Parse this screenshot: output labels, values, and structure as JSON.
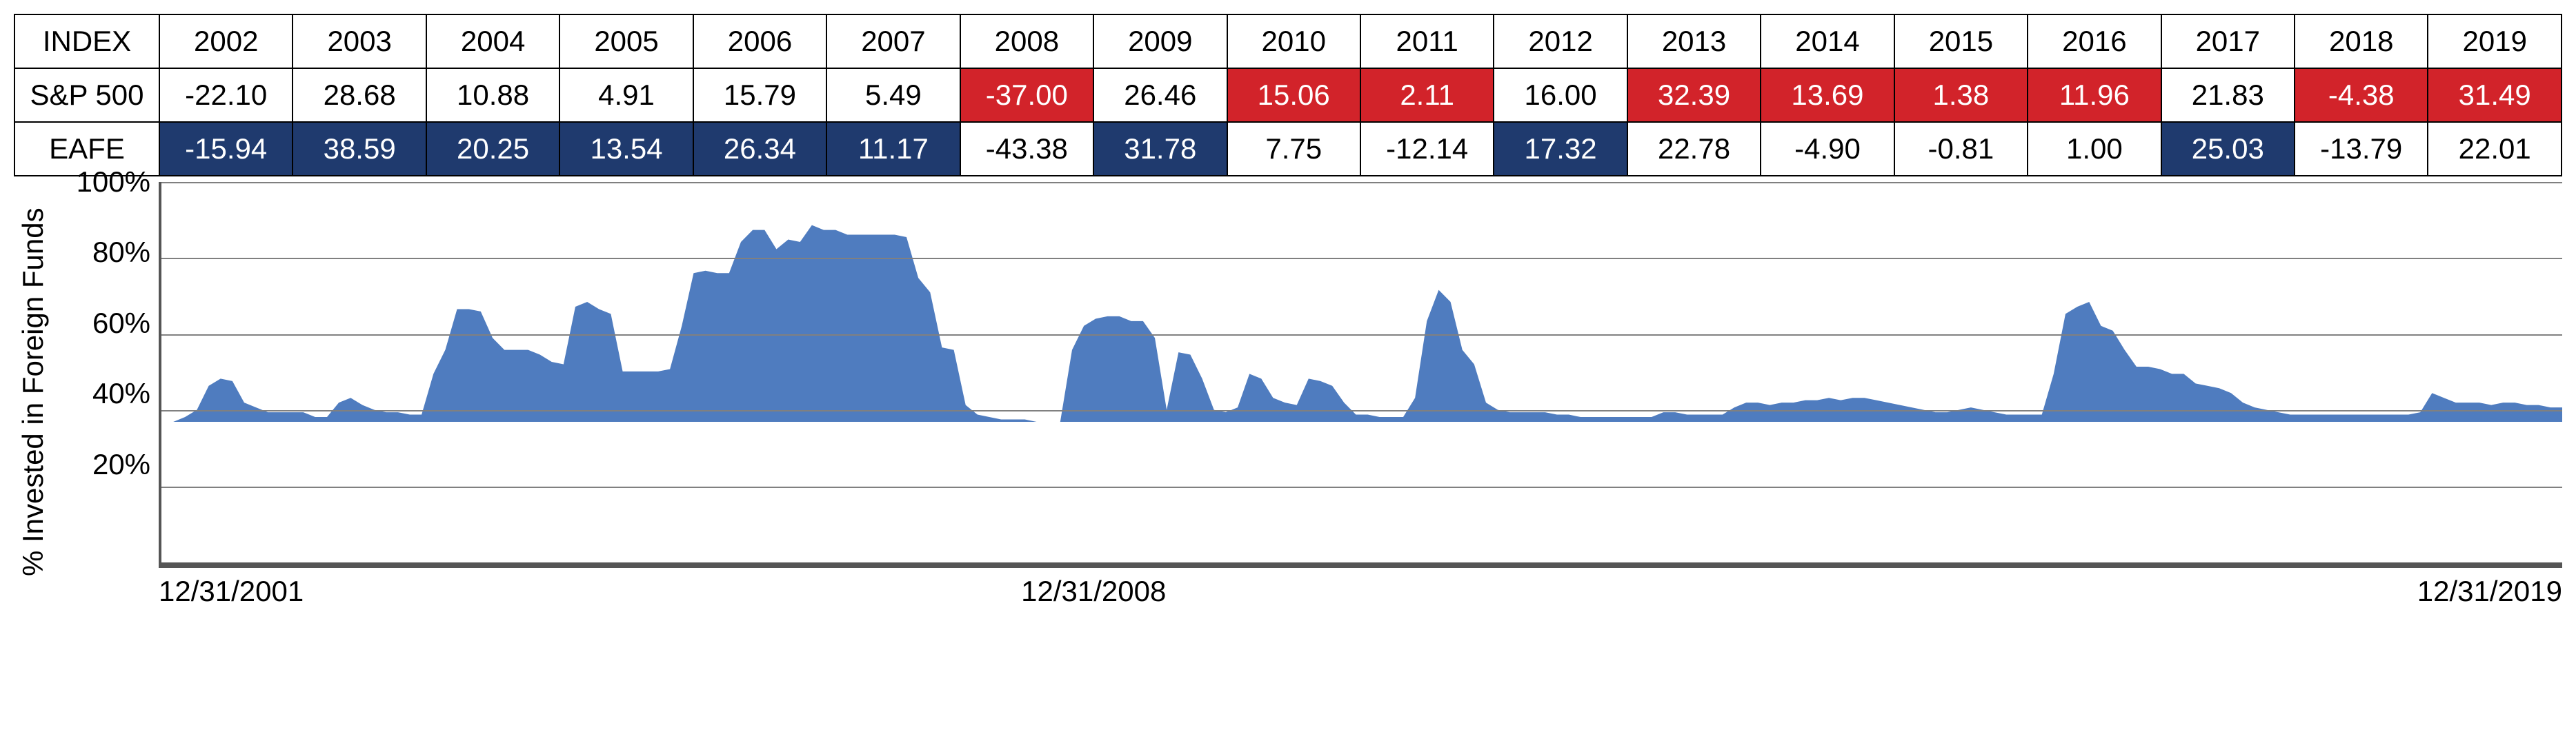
{
  "table": {
    "indexLabel": "INDEX",
    "years": [
      "2002",
      "2003",
      "2004",
      "2005",
      "2006",
      "2007",
      "2008",
      "2009",
      "2010",
      "2011",
      "2012",
      "2013",
      "2014",
      "2015",
      "2016",
      "2017",
      "2018",
      "2019"
    ],
    "rows": [
      {
        "label": "S&P 500",
        "cells": [
          {
            "v": "-22.10",
            "hl": false
          },
          {
            "v": "28.68",
            "hl": false
          },
          {
            "v": "10.88",
            "hl": false
          },
          {
            "v": "4.91",
            "hl": false
          },
          {
            "v": "15.79",
            "hl": false
          },
          {
            "v": "5.49",
            "hl": false
          },
          {
            "v": "-37.00",
            "hl": true
          },
          {
            "v": "26.46",
            "hl": false
          },
          {
            "v": "15.06",
            "hl": true
          },
          {
            "v": "2.11",
            "hl": true
          },
          {
            "v": "16.00",
            "hl": false
          },
          {
            "v": "32.39",
            "hl": true
          },
          {
            "v": "13.69",
            "hl": true
          },
          {
            "v": "1.38",
            "hl": true
          },
          {
            "v": "11.96",
            "hl": true
          },
          {
            "v": "21.83",
            "hl": false
          },
          {
            "v": "-4.38",
            "hl": true
          },
          {
            "v": "31.49",
            "hl": true
          }
        ],
        "hlColor": "#d2232a",
        "hlText": "#ffffff"
      },
      {
        "label": "EAFE",
        "cells": [
          {
            "v": "-15.94",
            "hl": true
          },
          {
            "v": "38.59",
            "hl": true
          },
          {
            "v": "20.25",
            "hl": true
          },
          {
            "v": "13.54",
            "hl": true
          },
          {
            "v": "26.34",
            "hl": true
          },
          {
            "v": "11.17",
            "hl": true
          },
          {
            "v": "-43.38",
            "hl": false
          },
          {
            "v": "31.78",
            "hl": true
          },
          {
            "v": "7.75",
            "hl": false
          },
          {
            "v": "-12.14",
            "hl": false
          },
          {
            "v": "17.32",
            "hl": true
          },
          {
            "v": "22.78",
            "hl": false
          },
          {
            "v": "-4.90",
            "hl": false
          },
          {
            "v": "-0.81",
            "hl": false
          },
          {
            "v": "1.00",
            "hl": false
          },
          {
            "v": "25.03",
            "hl": true
          },
          {
            "v": "-13.79",
            "hl": false
          },
          {
            "v": "22.01",
            "hl": false
          }
        ],
        "hlColor": "#1f3a6e",
        "hlText": "#ffffff"
      }
    ],
    "borderColor": "#000000",
    "font_size": 42
  },
  "chart": {
    "type": "area",
    "ylabel": "% Invested in Foreign Funds",
    "ylim": [
      0,
      100
    ],
    "yticks": [
      100,
      80,
      60,
      40,
      20
    ],
    "ytick_labels": [
      "100%",
      "80%",
      "60%",
      "40%",
      "20%"
    ],
    "xtick_labels": [
      "12/31/2001",
      "12/31/2008",
      "12/31/2019"
    ],
    "xtick_positions_pct": [
      0,
      38.9,
      100
    ],
    "fill_color": "#4f7cbf",
    "grid_color": "#808080",
    "axis_color": "#555555",
    "background_color": "#ffffff",
    "label_fontsize": 42,
    "series_pct": [
      0,
      0,
      2,
      5,
      15,
      18,
      17,
      8,
      6,
      4,
      4,
      4,
      4,
      2,
      2,
      8,
      10,
      7,
      5,
      4,
      4,
      3,
      3,
      20,
      30,
      47,
      47,
      46,
      35,
      30,
      30,
      30,
      28,
      25,
      24,
      48,
      50,
      47,
      45,
      21,
      21,
      21,
      21,
      22,
      40,
      62,
      63,
      62,
      62,
      75,
      80,
      80,
      72,
      76,
      75,
      82,
      80,
      80,
      78,
      78,
      78,
      78,
      78,
      77,
      60,
      54,
      31,
      30,
      7,
      3,
      2,
      1,
      1,
      1,
      0,
      0,
      0,
      30,
      40,
      43,
      44,
      44,
      42,
      42,
      35,
      5,
      29,
      28,
      18,
      5,
      4,
      6,
      20,
      18,
      10,
      8,
      7,
      18,
      17,
      15,
      8,
      3,
      3,
      2,
      2,
      2,
      10,
      42,
      55,
      50,
      30,
      24,
      8,
      5,
      4,
      4,
      4,
      4,
      3,
      3,
      2,
      2,
      2,
      2,
      2,
      2,
      2,
      4,
      4,
      3,
      3,
      3,
      3,
      6,
      8,
      8,
      7,
      8,
      8,
      9,
      9,
      10,
      9,
      10,
      10,
      9,
      8,
      7,
      6,
      5,
      4,
      4,
      5,
      6,
      5,
      4,
      3,
      3,
      3,
      3,
      20,
      45,
      48,
      50,
      40,
      38,
      30,
      23,
      23,
      22,
      20,
      20,
      16,
      15,
      14,
      12,
      8,
      6,
      5,
      4,
      3,
      3,
      3,
      3,
      3,
      3,
      3,
      3,
      3,
      3,
      3,
      4,
      12,
      10,
      8,
      8,
      8,
      7,
      8,
      8,
      7,
      7,
      6,
      6
    ]
  }
}
